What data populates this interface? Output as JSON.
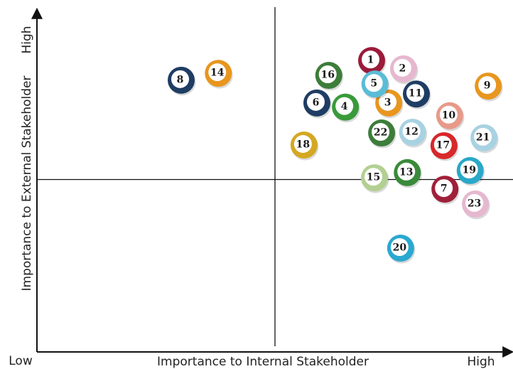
{
  "chart_data": {
    "type": "scatter",
    "x_label": "Importance to Internal Stakeholder",
    "y_label": "Importance to External Stakeholder",
    "x_axis_start_label": "Low",
    "x_axis_end_label": "High",
    "y_axis_end_label": "High",
    "xlim": [
      0,
      100
    ],
    "ylim": [
      0,
      100
    ],
    "point_labels": [
      "1",
      "2",
      "3",
      "4",
      "5",
      "6",
      "7",
      "8",
      "9",
      "10",
      "11",
      "12",
      "13",
      "14",
      "15",
      "16",
      "17",
      "18",
      "19",
      "20",
      "21",
      "22",
      "23"
    ],
    "x": [
      70.3,
      77.0,
      73.9,
      64.8,
      71.0,
      58.8,
      85.7,
      30.3,
      94.8,
      86.7,
      79.7,
      78.9,
      77.8,
      38.1,
      70.9,
      61.3,
      85.5,
      56.1,
      91.0,
      76.4,
      93.9,
      72.4,
      92.1
    ],
    "values": [
      84.5,
      82.1,
      72.2,
      71.0,
      77.7,
      72.2,
      47.2,
      78.8,
      77.1,
      68.5,
      74.8,
      63.7,
      52.0,
      80.8,
      50.5,
      80.2,
      59.8,
      60.0,
      52.6,
      30.1,
      62.1,
      63.5,
      42.9
    ],
    "colors": [
      "#9b1b3a",
      "#e6b8cf",
      "#e8961e",
      "#3a9a3a",
      "#5bbcd6",
      "#1f3d63",
      "#a0203a",
      "#1f3d63",
      "#e8961e",
      "#e89a8a",
      "#1f3d63",
      "#a8d2e2",
      "#3a8a3a",
      "#e8961e",
      "#b2d092",
      "#3d7d3a",
      "#d8282a",
      "#d4a822",
      "#2aa8c8",
      "#2aa8d0",
      "#a8d2e2",
      "#3d7d3a",
      "#e6b8cf"
    ]
  }
}
